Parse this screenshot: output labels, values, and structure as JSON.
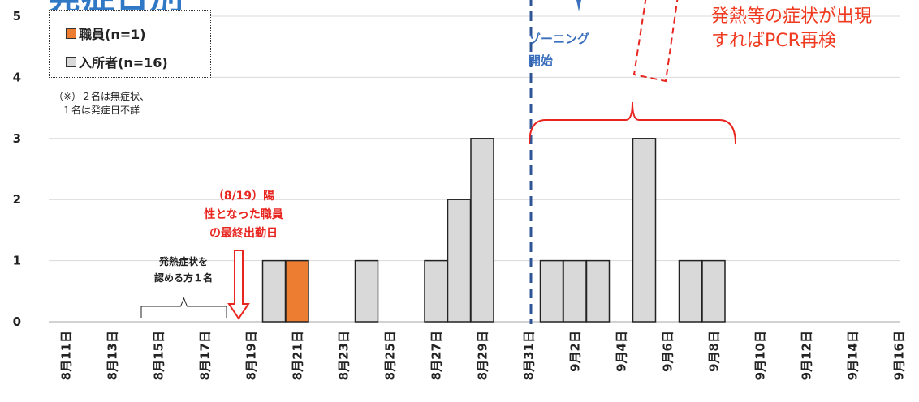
{
  "chart_data": {
    "type": "bar",
    "title": "発症日別",
    "ylim": [
      0,
      5
    ],
    "yticks": [
      "0",
      "1",
      "2",
      "3",
      "4",
      "5"
    ],
    "x": [
      "8/11",
      "8/12",
      "8/13",
      "8/14",
      "8/15",
      "8/16",
      "8/17",
      "8/18",
      "8/19",
      "8/20",
      "8/21",
      "8/22",
      "8/23",
      "8/24",
      "8/25",
      "8/26",
      "8/27",
      "8/28",
      "8/29",
      "8/30",
      "8/31",
      "9/1",
      "9/2",
      "9/3",
      "9/4",
      "9/5",
      "9/6",
      "9/7",
      "9/8",
      "9/9",
      "9/10",
      "9/11",
      "9/12",
      "9/13",
      "9/14",
      "9/15",
      "9/16"
    ],
    "xtick_labels": [
      "8月11日",
      "8月13日",
      "8月15日",
      "8月17日",
      "8月19日",
      "8月21日",
      "8月23日",
      "8月25日",
      "8月27日",
      "8月29日",
      "8月31日",
      "9月2日",
      "9月4日",
      "9月6日",
      "9月8日",
      "9月10日",
      "9月12日",
      "9月14日",
      "9月16日"
    ],
    "series": [
      {
        "name": "職員(n=1)",
        "color": "#ed7d31",
        "values": [
          0,
          0,
          0,
          0,
          0,
          0,
          0,
          0,
          0,
          0,
          1,
          0,
          0,
          0,
          0,
          0,
          0,
          0,
          0,
          0,
          0,
          0,
          0,
          0,
          0,
          0,
          0,
          0,
          0,
          0,
          0,
          0,
          0,
          0,
          0,
          0,
          0
        ]
      },
      {
        "name": "入所者(n=16)",
        "color": "#d9d9d9",
        "values": [
          0,
          0,
          0,
          0,
          0,
          0,
          0,
          0,
          0,
          1,
          0,
          0,
          0,
          1,
          0,
          0,
          1,
          2,
          3,
          0,
          0,
          1,
          1,
          1,
          0,
          3,
          0,
          1,
          1,
          0,
          0,
          0,
          0,
          0,
          0,
          0,
          0
        ]
      }
    ],
    "legend": [
      "職員(n=1)",
      "入所者(n=16)"
    ],
    "legend_position": "top-left",
    "grid": true,
    "annotations": {
      "note": [
        "（※）２名は無症状、",
        "１名は発症日不詳"
      ],
      "zoning": [
        "ゾーニング",
        "開始"
      ],
      "pcr": [
        "発熱等の症状が出現",
        "すればPCR再検"
      ],
      "staff_last_day": [
        "（8/19）陽",
        "性となった職員",
        "の最終出勤日"
      ],
      "fever": [
        "発熱症状を",
        "認める方１名"
      ]
    }
  },
  "colors": {
    "staff": "#ed7d31",
    "resident": "#d9d9d9",
    "zoning_line": "#2f5597",
    "red": "#e8251f",
    "grid": "#d9d9d9"
  }
}
